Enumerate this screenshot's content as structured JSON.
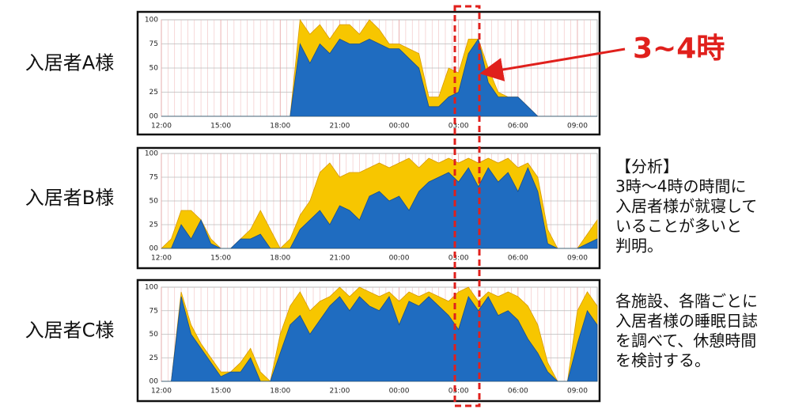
{
  "chart_data": [
    {
      "type": "area",
      "title": "入居者A様",
      "grid": true,
      "x": [
        12,
        12.5,
        13,
        13.5,
        14,
        14.5,
        15,
        15.5,
        16,
        16.5,
        17,
        17.5,
        18,
        18.5,
        19,
        19.5,
        20,
        20.5,
        21,
        21.5,
        22,
        22.5,
        23,
        23.5,
        24,
        24.5,
        25,
        25.5,
        26,
        26.5,
        27,
        27.5,
        28,
        28.5,
        29,
        29.5,
        30,
        30.5,
        31,
        31.5,
        32,
        32.5,
        33,
        33.5,
        34
      ],
      "xlim": [
        12,
        34
      ],
      "ylim": [
        0,
        100
      ],
      "xticks": [
        {
          "value": 12,
          "label": "12:00"
        },
        {
          "value": 15,
          "label": "15:00"
        },
        {
          "value": 18,
          "label": "18:00"
        },
        {
          "value": 21,
          "label": "21:00"
        },
        {
          "value": 24,
          "label": "00:00"
        },
        {
          "value": 27,
          "label": "03:00"
        },
        {
          "value": 30,
          "label": "06:00"
        },
        {
          "value": 33,
          "label": "09:00"
        }
      ],
      "yticks": [
        {
          "value": 0,
          "label": "00"
        },
        25,
        50,
        75,
        100
      ],
      "series": [
        {
          "color": "#f7c600",
          "values": [
            0,
            0,
            0,
            0,
            0,
            0,
            0,
            0,
            0,
            0,
            0,
            0,
            0,
            0,
            100,
            85,
            95,
            80,
            95,
            95,
            85,
            100,
            90,
            75,
            75,
            70,
            65,
            20,
            20,
            50,
            45,
            80,
            80,
            50,
            25,
            20,
            20,
            10,
            0,
            0,
            0,
            0,
            0,
            0,
            0
          ]
        },
        {
          "color": "#1f6cc0",
          "values": [
            0,
            0,
            0,
            0,
            0,
            0,
            0,
            0,
            0,
            0,
            0,
            0,
            0,
            0,
            75,
            55,
            75,
            65,
            80,
            75,
            75,
            80,
            75,
            70,
            70,
            60,
            50,
            10,
            10,
            20,
            25,
            65,
            80,
            35,
            20,
            20,
            20,
            10,
            0,
            0,
            0,
            0,
            0,
            0,
            0
          ]
        }
      ]
    },
    {
      "type": "area",
      "title": "入居者B様",
      "grid": true,
      "x": [
        12,
        12.5,
        13,
        13.5,
        14,
        14.5,
        15,
        15.5,
        16,
        16.5,
        17,
        17.5,
        18,
        18.5,
        19,
        19.5,
        20,
        20.5,
        21,
        21.5,
        22,
        22.5,
        23,
        23.5,
        24,
        24.5,
        25,
        25.5,
        26,
        26.5,
        27,
        27.5,
        28,
        28.5,
        29,
        29.5,
        30,
        30.5,
        31,
        31.5,
        32,
        32.5,
        33,
        33.5,
        34
      ],
      "xlim": [
        12,
        34
      ],
      "ylim": [
        0,
        100
      ],
      "xticks": [
        {
          "value": 12,
          "label": "12:00"
        },
        {
          "value": 15,
          "label": "15:00"
        },
        {
          "value": 18,
          "label": "18:00"
        },
        {
          "value": 21,
          "label": "21:00"
        },
        {
          "value": 24,
          "label": "00:00"
        },
        {
          "value": 27,
          "label": "03:00"
        },
        {
          "value": 30,
          "label": "06:00"
        },
        {
          "value": 33,
          "label": "09:00"
        }
      ],
      "yticks": [
        {
          "value": 0,
          "label": "00"
        },
        25,
        50,
        75,
        100
      ],
      "series": [
        {
          "color": "#f7c600",
          "values": [
            0,
            10,
            40,
            40,
            30,
            10,
            0,
            0,
            10,
            20,
            40,
            20,
            0,
            10,
            35,
            50,
            80,
            90,
            75,
            80,
            80,
            85,
            90,
            85,
            90,
            95,
            85,
            95,
            90,
            95,
            90,
            95,
            90,
            95,
            90,
            95,
            85,
            90,
            75,
            20,
            0,
            0,
            0,
            15,
            30
          ]
        },
        {
          "color": "#1f6cc0",
          "values": [
            0,
            0,
            25,
            10,
            30,
            5,
            0,
            0,
            10,
            10,
            15,
            0,
            0,
            0,
            20,
            30,
            40,
            25,
            45,
            40,
            30,
            55,
            60,
            50,
            55,
            40,
            60,
            70,
            75,
            80,
            70,
            85,
            65,
            85,
            70,
            80,
            60,
            85,
            60,
            5,
            0,
            0,
            0,
            5,
            10
          ]
        }
      ]
    },
    {
      "type": "area",
      "title": "入居者C様",
      "grid": true,
      "x": [
        12,
        12.5,
        13,
        13.5,
        14,
        14.5,
        15,
        15.5,
        16,
        16.5,
        17,
        17.5,
        18,
        18.5,
        19,
        19.5,
        20,
        20.5,
        21,
        21.5,
        22,
        22.5,
        23,
        23.5,
        24,
        24.5,
        25,
        25.5,
        26,
        26.5,
        27,
        27.5,
        28,
        28.5,
        29,
        29.5,
        30,
        30.5,
        31,
        31.5,
        32,
        32.5,
        33,
        33.5,
        34
      ],
      "xlim": [
        12,
        34
      ],
      "ylim": [
        0,
        100
      ],
      "xticks": [
        {
          "value": 12,
          "label": "12:00"
        },
        {
          "value": 15,
          "label": "15:00"
        },
        {
          "value": 18,
          "label": "18:00"
        },
        {
          "value": 21,
          "label": "21:00"
        },
        {
          "value": 24,
          "label": "00:00"
        },
        {
          "value": 27,
          "label": "03:00"
        },
        {
          "value": 30,
          "label": "06:00"
        },
        {
          "value": 33,
          "label": "09:00"
        }
      ],
      "yticks": [
        {
          "value": 0,
          "label": "00"
        },
        25,
        50,
        75,
        100
      ],
      "series": [
        {
          "color": "#f7c600",
          "values": [
            0,
            0,
            95,
            60,
            40,
            25,
            10,
            10,
            20,
            35,
            10,
            0,
            50,
            80,
            95,
            75,
            85,
            90,
            100,
            90,
            100,
            95,
            90,
            95,
            85,
            95,
            90,
            95,
            90,
            85,
            95,
            100,
            85,
            95,
            90,
            95,
            90,
            80,
            60,
            20,
            0,
            0,
            75,
            95,
            80
          ]
        },
        {
          "color": "#1f6cc0",
          "values": [
            0,
            0,
            90,
            50,
            35,
            20,
            5,
            10,
            10,
            25,
            0,
            0,
            30,
            60,
            70,
            50,
            65,
            80,
            90,
            75,
            90,
            80,
            75,
            90,
            60,
            85,
            80,
            90,
            80,
            70,
            55,
            90,
            75,
            90,
            70,
            75,
            65,
            45,
            30,
            10,
            0,
            0,
            40,
            75,
            60
          ]
        }
      ]
    }
  ],
  "callout": "3~4時",
  "notes": [
    [
      "【分析】",
      "3時～4時の時間に",
      "入居者様が就寝して",
      "いることが多いと",
      "判明。"
    ],
    [
      "各施設、各階ごとに",
      "入居者様の睡眠日誌",
      "を調べて、休憩時間",
      "を検討する。"
    ]
  ]
}
